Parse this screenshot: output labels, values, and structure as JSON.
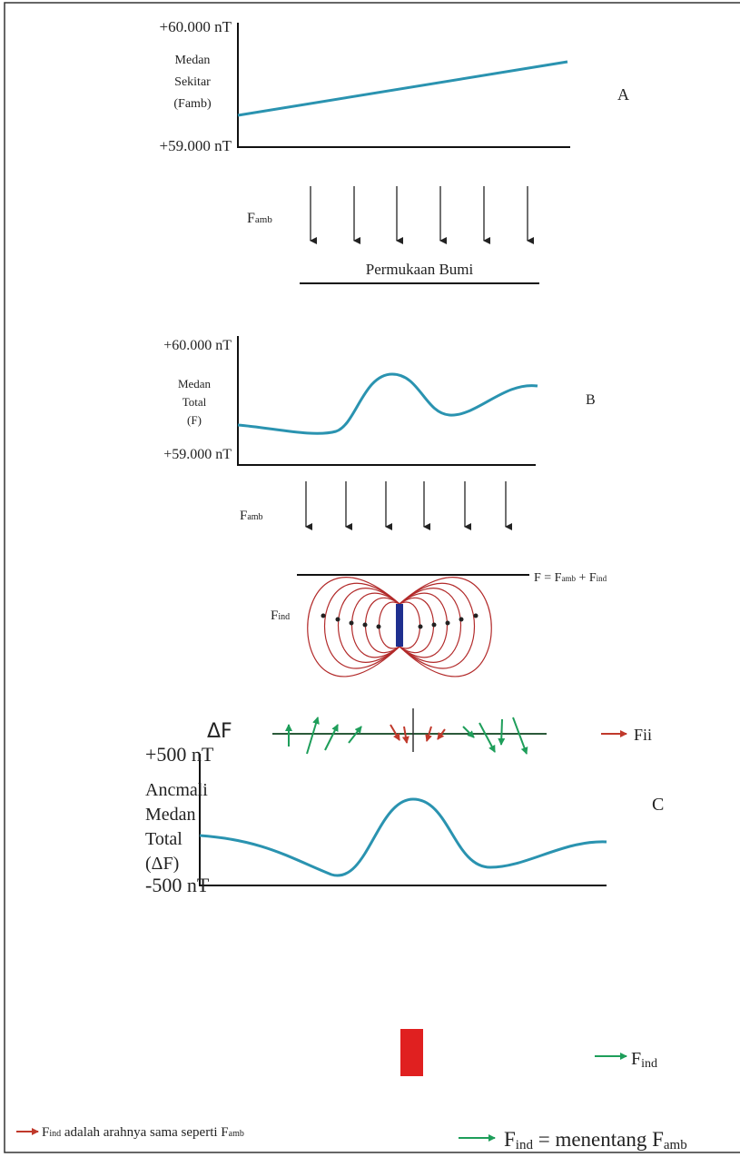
{
  "panel_a": {
    "label": "A",
    "y_top": "+60.000 nT",
    "y_bottom": "+59.000 nT",
    "y_title": [
      "Medan",
      "Sekitar",
      "(Famb)"
    ],
    "arrow_label": {
      "base": "F",
      "sub": "amb"
    },
    "surface": "Permukaan Bumi"
  },
  "panel_b": {
    "label": "B",
    "y_top": "+60.000 nT",
    "y_bottom": "+59.000 nT",
    "y_title": [
      "Medan",
      "Total",
      "(F)"
    ],
    "arrow_label": {
      "base": "F",
      "sub": "amb"
    },
    "equation": {
      "lhs": "F = F",
      "sub1": "amb",
      "plus": " + F",
      "sub2": "ind"
    },
    "induced_label": {
      "base": "F",
      "sub": "ind"
    }
  },
  "panel_c": {
    "label": "C",
    "y_top": "+500 nT",
    "y_bottom": "-500 nT",
    "y_title": [
      "Ancmali",
      "Medan",
      "Total",
      "(ΔF)"
    ],
    "delta_label": "ΔF",
    "legend": [
      {
        "text": "Fii"
      },
      {
        "base": "F",
        "sub": "ind"
      }
    ]
  },
  "footer": {
    "left": {
      "base": "F",
      "sub": "ind",
      "text": " adalah arahnya sama seperti F",
      "sub2": "amb"
    },
    "right": {
      "base": "F",
      "sub": "ind",
      "text": " = menentang F",
      "sub2": "amb"
    }
  }
}
